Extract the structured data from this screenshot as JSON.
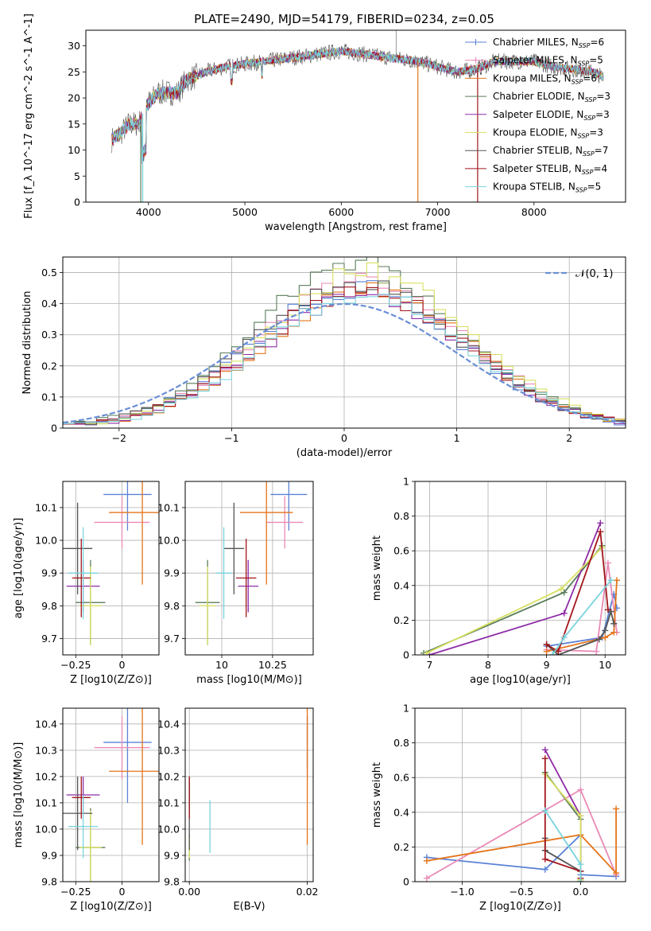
{
  "figure": {
    "title": "PLATE=2490, MJD=54179, FIBERID=0234, z=0.05"
  },
  "colors": {
    "chabrier_miles": "#5b82d6",
    "salpeter_miles": "#ea8ab6",
    "kroupa_miles": "#e5751a",
    "chabrier_elodie": "#5a7d5a",
    "salpeter_elodie": "#8e2ca6",
    "kroupa_elodie": "#d8e060",
    "chabrier_stelib": "#555555",
    "salpeter_stelib": "#a3161c",
    "kroupa_stelib": "#7ad3dc",
    "gauss": "#6b8fd6",
    "grid": "#b0b0b0"
  },
  "chart_data": [
    {
      "id": "spectrum",
      "type": "line",
      "title": "PLATE=2490, MJD=54179, FIBERID=0234, z=0.05",
      "xlabel": "wavelength [Angstrom, rest frame]",
      "ylabel": "Flux [f_λ 10^-17 erg cm^-2 s^-1 A^-1]",
      "xlim": [
        3350,
        8950
      ],
      "ylim": [
        0,
        33
      ],
      "xticks": [
        4000,
        5000,
        6000,
        7000,
        8000
      ],
      "yticks": [
        0,
        5,
        10,
        15,
        20,
        25,
        30
      ],
      "grid": false,
      "legend_position": "top-right",
      "series": [
        {
          "name": "Chabrier MILES, N_SSP=6"
        },
        {
          "name": "Salpeter MILES, N_SSP=5"
        },
        {
          "name": "Kroupa MILES, N_SSP=6"
        },
        {
          "name": "Chabrier ELODIE, N_SSP=3"
        },
        {
          "name": "Salpeter ELODIE, N_SSP=3"
        },
        {
          "name": "Kroupa ELODIE, N_SSP=3"
        },
        {
          "name": "Chabrier STELIB, N_SSP=7"
        },
        {
          "name": "Salpeter STELIB, N_SSP=4"
        },
        {
          "name": "Kroupa STELIB, N_SSP=5"
        }
      ],
      "continuum": [
        [
          3620,
          12
        ],
        [
          3700,
          13
        ],
        [
          3800,
          15
        ],
        [
          3900,
          15
        ],
        [
          3960,
          18
        ],
        [
          4000,
          19
        ],
        [
          4100,
          21
        ],
        [
          4200,
          21
        ],
        [
          4300,
          21
        ],
        [
          4400,
          23.5
        ],
        [
          4600,
          25
        ],
        [
          4800,
          26
        ],
        [
          5000,
          26.5
        ],
        [
          5200,
          27
        ],
        [
          5400,
          27.5
        ],
        [
          5600,
          28
        ],
        [
          5800,
          28.5
        ],
        [
          6000,
          29
        ],
        [
          6200,
          28.5
        ],
        [
          6400,
          28
        ],
        [
          6600,
          27.5
        ],
        [
          6800,
          27
        ],
        [
          7000,
          26
        ],
        [
          7200,
          25
        ],
        [
          7400,
          25.5
        ],
        [
          7600,
          27
        ],
        [
          7800,
          27
        ],
        [
          8000,
          27
        ],
        [
          8200,
          26
        ],
        [
          8400,
          25.5
        ],
        [
          8600,
          25
        ],
        [
          8720,
          24
        ]
      ]
    },
    {
      "id": "residuals",
      "type": "histogram",
      "xlabel": "(data-model)/error",
      "ylabel": "Normed distribution",
      "xlim": [
        -2.5,
        2.5
      ],
      "ylim": [
        0,
        0.55
      ],
      "xticks": [
        -2,
        -1,
        0,
        1,
        2
      ],
      "yticks": [
        0.0,
        0.1,
        0.2,
        0.3,
        0.4,
        0.5
      ],
      "grid": true,
      "legend_position": "top-right",
      "legend": [
        "𝒩(0, 1)"
      ],
      "bin_width": 0.1,
      "peak_heights": [
        0.45,
        0.48,
        0.44,
        0.53,
        0.42,
        0.5,
        0.47,
        0.44,
        0.43
      ]
    },
    {
      "id": "age_vs_Z",
      "type": "errorbar",
      "xlabel": "Z [log10(Z/Z⊙)]",
      "ylabel": "age [log10(age/yr)]",
      "xlim": [
        -0.32,
        0.2
      ],
      "ylim": [
        9.65,
        10.18
      ],
      "xticks": [
        -0.25,
        0.0
      ],
      "yticks": [
        9.7,
        9.8,
        9.9,
        10.0,
        10.1
      ],
      "grid": true,
      "points": [
        {
          "series": "chabrier_miles",
          "x": 0.03,
          "xerr": 0.13,
          "y": 10.14,
          "yerr": 0.11
        },
        {
          "series": "salpeter_miles",
          "x": 0.0,
          "xerr": 0.15,
          "y": 10.055,
          "yerr": 0.08
        },
        {
          "series": "kroupa_miles",
          "x": 0.11,
          "xerr": 0.18,
          "y": 10.085,
          "yerr": 0.22
        },
        {
          "series": "chabrier_elodie",
          "x": -0.17,
          "xerr": 0.08,
          "y": 9.81,
          "yerr": 0.13
        },
        {
          "series": "salpeter_elodie",
          "x": -0.21,
          "xerr": 0.09,
          "y": 9.86,
          "yerr": 0.08
        },
        {
          "series": "kroupa_elodie",
          "x": -0.17,
          "xerr": 0.06,
          "y": 9.8,
          "yerr": 0.12
        },
        {
          "series": "chabrier_stelib",
          "x": -0.24,
          "xerr": 0.08,
          "y": 9.975,
          "yerr": 0.14
        },
        {
          "series": "salpeter_stelib",
          "x": -0.22,
          "xerr": 0.05,
          "y": 9.885,
          "yerr": 0.12
        },
        {
          "series": "kroupa_stelib",
          "x": -0.21,
          "xerr": 0.08,
          "y": 9.9,
          "yerr": 0.14
        }
      ]
    },
    {
      "id": "age_vs_mass",
      "type": "errorbar",
      "xlabel": "mass [log10(M/M⊙)]",
      "xlim": [
        9.82,
        10.45
      ],
      "ylim": [
        9.65,
        10.18
      ],
      "xticks": [
        10.0,
        10.25
      ],
      "yticks": [
        9.7,
        9.8,
        9.9,
        10.0,
        10.1
      ],
      "grid": true,
      "points": [
        {
          "series": "chabrier_miles",
          "x": 10.33,
          "xerr": 0.09,
          "y": 10.14,
          "yerr": 0.11
        },
        {
          "series": "salpeter_miles",
          "x": 10.31,
          "xerr": 0.09,
          "y": 10.055,
          "yerr": 0.08
        },
        {
          "series": "kroupa_miles",
          "x": 10.22,
          "xerr": 0.13,
          "y": 10.085,
          "yerr": 0.22
        },
        {
          "series": "chabrier_elodie",
          "x": 9.93,
          "xerr": 0.06,
          "y": 9.81,
          "yerr": 0.13
        },
        {
          "series": "salpeter_elodie",
          "x": 10.13,
          "xerr": 0.05,
          "y": 9.86,
          "yerr": 0.08
        },
        {
          "series": "kroupa_elodie",
          "x": 9.93,
          "xerr": 0.04,
          "y": 9.8,
          "yerr": 0.12
        },
        {
          "series": "chabrier_stelib",
          "x": 10.06,
          "xerr": 0.05,
          "y": 9.975,
          "yerr": 0.14
        },
        {
          "series": "salpeter_stelib",
          "x": 10.12,
          "xerr": 0.05,
          "y": 9.885,
          "yerr": 0.12
        },
        {
          "series": "kroupa_stelib",
          "x": 10.01,
          "xerr": 0.04,
          "y": 9.9,
          "yerr": 0.14
        }
      ]
    },
    {
      "id": "weight_vs_age",
      "type": "line",
      "xlabel": "age [log10(age/yr)]",
      "ylabel": "mass weight",
      "xlim": [
        6.75,
        10.35
      ],
      "ylim": [
        0,
        1.0
      ],
      "xticks": [
        7,
        8,
        9,
        10
      ],
      "yticks": [
        0.0,
        0.2,
        0.4,
        0.6,
        0.8,
        1.0
      ],
      "grid": true,
      "series": [
        {
          "key": "chabrier_miles",
          "x": [
            9.0,
            9.95,
            10.15,
            10.2
          ],
          "y": [
            0.05,
            0.1,
            0.35,
            0.27
          ]
        },
        {
          "key": "salpeter_miles",
          "x": [
            9.0,
            9.85,
            10.05,
            10.2
          ],
          "y": [
            0.03,
            0.02,
            0.53,
            0.13
          ]
        },
        {
          "key": "kroupa_miles",
          "x": [
            9.0,
            10.0,
            10.15,
            10.2
          ],
          "y": [
            0.02,
            0.1,
            0.13,
            0.43
          ]
        },
        {
          "key": "chabrier_elodie",
          "x": [
            6.9,
            9.3,
            9.95
          ],
          "y": [
            0.01,
            0.36,
            0.63
          ]
        },
        {
          "key": "salpeter_elodie",
          "x": [
            7.0,
            9.3,
            9.92
          ],
          "y": [
            0.0,
            0.24,
            0.76
          ]
        },
        {
          "key": "kroupa_elodie",
          "x": [
            6.95,
            9.25,
            9.95
          ],
          "y": [
            0.01,
            0.38,
            0.62
          ]
        },
        {
          "key": "chabrier_stelib",
          "x": [
            9.0,
            9.2,
            9.9,
            10.0,
            10.1,
            10.15
          ],
          "y": [
            0.06,
            0.0,
            0.09,
            0.14,
            0.25,
            0.18
          ]
        },
        {
          "key": "salpeter_stelib",
          "x": [
            9.0,
            9.2,
            9.92,
            10.05
          ],
          "y": [
            0.06,
            0.02,
            0.71,
            0.26
          ]
        },
        {
          "key": "kroupa_stelib",
          "x": [
            9.1,
            9.3,
            10.1
          ],
          "y": [
            0.0,
            0.1,
            0.43
          ]
        }
      ]
    },
    {
      "id": "mass_vs_Z",
      "type": "errorbar",
      "xlabel": "Z [log10(Z/Z⊙)]",
      "ylabel": "mass [log10(M/M⊙)]",
      "xlim": [
        -0.32,
        0.2
      ],
      "ylim": [
        9.8,
        10.46
      ],
      "xticks": [
        -0.25,
        0.0
      ],
      "yticks": [
        9.8,
        9.9,
        10.0,
        10.1,
        10.2,
        10.3,
        10.4
      ],
      "grid": true,
      "points": [
        {
          "series": "chabrier_miles",
          "x": 0.03,
          "xerr": 0.13,
          "y": 10.33,
          "yerr": 0.23
        },
        {
          "series": "salpeter_miles",
          "x": 0.0,
          "xerr": 0.15,
          "y": 10.31,
          "yerr": 0.12
        },
        {
          "series": "kroupa_miles",
          "x": 0.11,
          "xerr": 0.18,
          "y": 10.22,
          "yerr": 0.28
        },
        {
          "series": "chabrier_elodie",
          "x": -0.17,
          "xerr": 0.08,
          "y": 9.93,
          "yerr": 0.15
        },
        {
          "series": "salpeter_elodie",
          "x": -0.21,
          "xerr": 0.09,
          "y": 10.13,
          "yerr": 0.07
        },
        {
          "series": "kroupa_elodie",
          "x": -0.17,
          "xerr": 0.06,
          "y": 9.93,
          "yerr": 0.14
        },
        {
          "series": "chabrier_stelib",
          "x": -0.24,
          "xerr": 0.08,
          "y": 10.06,
          "yerr": 0.14
        },
        {
          "series": "salpeter_stelib",
          "x": -0.22,
          "xerr": 0.05,
          "y": 10.12,
          "yerr": 0.08
        },
        {
          "series": "kroupa_stelib",
          "x": -0.21,
          "xerr": 0.08,
          "y": 10.01,
          "yerr": 0.12
        }
      ]
    },
    {
      "id": "mass_vs_ebv",
      "type": "errorbar",
      "xlabel": "E(B-V)",
      "xlim": [
        -0.0007,
        0.021
      ],
      "ylim": [
        9.8,
        10.46
      ],
      "xticks": [
        0.0,
        0.02
      ],
      "xtick_labels": [
        "0.00",
        "0.02"
      ],
      "yticks": [
        9.8,
        9.9,
        10.0,
        10.1,
        10.2,
        10.3,
        10.4
      ],
      "grid": true,
      "points": [
        {
          "series": "chabrier_miles",
          "x": 0.02,
          "xerr": 0,
          "y": 10.33,
          "yerr": 0.1
        },
        {
          "series": "salpeter_miles",
          "x": 0.02,
          "xerr": 0,
          "y": 10.31,
          "yerr": 0.12
        },
        {
          "series": "kroupa_miles",
          "x": 0.02,
          "xerr": 0,
          "y": 10.22,
          "yerr": 0.28
        },
        {
          "series": "chabrier_elodie",
          "x": 0.0,
          "xerr": 0,
          "y": 9.93,
          "yerr": 0.05
        },
        {
          "series": "salpeter_elodie",
          "x": 0.0,
          "xerr": 0,
          "y": 10.13,
          "yerr": 0.05
        },
        {
          "series": "kroupa_elodie",
          "x": 0.0,
          "xerr": 0,
          "y": 9.93,
          "yerr": 0.04
        },
        {
          "series": "chabrier_stelib",
          "x": 0.0,
          "xerr": 0,
          "y": 10.06,
          "yerr": 0.14
        },
        {
          "series": "salpeter_stelib",
          "x": 0.0,
          "xerr": 0,
          "y": 10.12,
          "yerr": 0.08
        },
        {
          "series": "kroupa_stelib",
          "x": 0.0035,
          "xerr": 0,
          "y": 10.01,
          "yerr": 0.1
        }
      ]
    },
    {
      "id": "weight_vs_Z",
      "type": "line",
      "xlabel": "Z [log10(Z/Z⊙)]",
      "ylabel": "mass weight",
      "xlim": [
        -1.4,
        0.38
      ],
      "ylim": [
        0,
        1.0
      ],
      "xticks": [
        -1.0,
        -0.5,
        0.0
      ],
      "xtick_labels": [
        "−1.0",
        "−0.5",
        "0.0"
      ],
      "yticks": [
        0.0,
        0.2,
        0.4,
        0.6,
        0.8,
        1.0
      ],
      "grid": true,
      "series": [
        {
          "key": "chabrier_miles",
          "x": [
            -1.3,
            -0.3,
            0.0,
            0.0,
            0.3
          ],
          "y": [
            0.14,
            0.07,
            0.27,
            0.04,
            0.03
          ]
        },
        {
          "key": "salpeter_miles",
          "x": [
            -1.3,
            0.0,
            0.3
          ],
          "y": [
            0.02,
            0.53,
            0.04
          ]
        },
        {
          "key": "kroupa_miles",
          "x": [
            -1.3,
            0.0,
            0.3,
            0.3
          ],
          "y": [
            0.12,
            0.27,
            0.05,
            0.42
          ]
        },
        {
          "key": "chabrier_elodie",
          "x": [
            -0.3,
            0.0,
            0.0
          ],
          "y": [
            0.63,
            0.36,
            0.01
          ]
        },
        {
          "key": "salpeter_elodie",
          "x": [
            -0.3,
            0.0,
            0.0
          ],
          "y": [
            0.76,
            0.38,
            0.0
          ]
        },
        {
          "key": "kroupa_elodie",
          "x": [
            -0.3,
            0.0,
            0.0
          ],
          "y": [
            0.62,
            0.38,
            0.01
          ]
        },
        {
          "key": "chabrier_stelib",
          "x": [
            -0.3,
            -0.3,
            0.0,
            0.0
          ],
          "y": [
            0.25,
            0.18,
            0.06,
            0.0
          ]
        },
        {
          "key": "salpeter_stelib",
          "x": [
            -0.3,
            -0.3,
            0.0,
            0.0
          ],
          "y": [
            0.71,
            0.13,
            0.06,
            0.02
          ]
        },
        {
          "key": "kroupa_stelib",
          "x": [
            -0.3,
            0.0,
            0.0
          ],
          "y": [
            0.41,
            0.1,
            0.0
          ]
        }
      ]
    }
  ]
}
